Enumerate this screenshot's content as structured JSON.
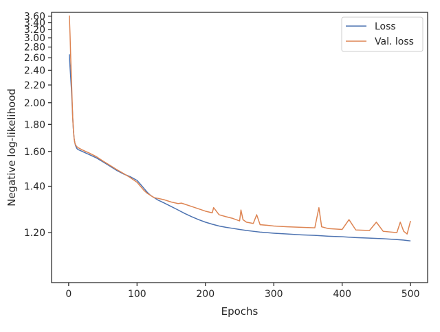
{
  "chart_data": {
    "type": "line",
    "title": "",
    "xlabel": "Epochs",
    "ylabel": "Negative log-likelihood",
    "xlim": [
      -25,
      525
    ],
    "ylim": [
      1.04,
      3.73
    ],
    "y_scale": "reciprocal",
    "x_ticks": [
      0,
      100,
      200,
      300,
      400,
      500
    ],
    "x_tick_labels": [
      "0",
      "100",
      "200",
      "300",
      "400",
      "500"
    ],
    "y_ticks": [
      1.2,
      1.4,
      1.6,
      1.8,
      2.0,
      2.2,
      2.4,
      2.6,
      2.8,
      3.0,
      3.2,
      3.4,
      3.6
    ],
    "y_tick_labels": [
      "1.20",
      "1.40",
      "1.60",
      "1.80",
      "2.00",
      "2.20",
      "2.40",
      "2.60",
      "2.80",
      "3.00",
      "3.20",
      "3.40",
      "3.60"
    ],
    "grid": false,
    "legend_position": "top-right",
    "series": [
      {
        "name": "Loss",
        "color": "#4c72b0",
        "x": [
          1,
          2,
          3,
          4,
          5,
          6,
          7,
          8,
          9,
          10,
          11,
          12,
          13,
          14,
          15,
          20,
          30,
          40,
          50,
          60,
          70,
          80,
          90,
          100,
          105,
          110,
          115,
          120,
          130,
          140,
          150,
          160,
          170,
          180,
          190,
          200,
          210,
          220,
          230,
          240,
          250,
          260,
          270,
          280,
          290,
          300,
          320,
          340,
          360,
          380,
          400,
          420,
          440,
          460,
          480,
          490,
          500
        ],
        "y": [
          2.66,
          2.45,
          2.3,
          2.15,
          2.0,
          1.85,
          1.75,
          1.69,
          1.66,
          1.64,
          1.63,
          1.62,
          1.615,
          1.612,
          1.61,
          1.6,
          1.58,
          1.56,
          1.535,
          1.51,
          1.485,
          1.465,
          1.45,
          1.43,
          1.41,
          1.39,
          1.37,
          1.355,
          1.335,
          1.32,
          1.305,
          1.29,
          1.275,
          1.262,
          1.25,
          1.24,
          1.232,
          1.225,
          1.22,
          1.216,
          1.212,
          1.208,
          1.205,
          1.202,
          1.2,
          1.198,
          1.195,
          1.192,
          1.19,
          1.187,
          1.185,
          1.182,
          1.18,
          1.178,
          1.175,
          1.173,
          1.17
        ]
      },
      {
        "name": "Val. loss",
        "color": "#dd8452",
        "x": [
          1,
          2,
          3,
          4,
          5,
          6,
          7,
          8,
          9,
          10,
          11,
          12,
          13,
          14,
          15,
          20,
          30,
          40,
          50,
          60,
          70,
          80,
          90,
          100,
          105,
          110,
          115,
          120,
          125,
          130,
          140,
          150,
          160,
          165,
          170,
          180,
          190,
          200,
          210,
          212,
          220,
          230,
          240,
          250,
          252,
          255,
          260,
          270,
          275,
          280,
          290,
          300,
          320,
          340,
          360,
          366,
          370,
          380,
          400,
          410,
          420,
          440,
          450,
          460,
          480,
          485,
          490,
          495,
          500
        ],
        "y": [
          3.62,
          3.1,
          2.6,
          2.3,
          2.05,
          1.85,
          1.75,
          1.69,
          1.66,
          1.645,
          1.638,
          1.632,
          1.628,
          1.625,
          1.622,
          1.61,
          1.59,
          1.568,
          1.54,
          1.515,
          1.49,
          1.468,
          1.445,
          1.42,
          1.4,
          1.38,
          1.365,
          1.355,
          1.345,
          1.342,
          1.335,
          1.325,
          1.318,
          1.32,
          1.315,
          1.305,
          1.295,
          1.285,
          1.278,
          1.3,
          1.27,
          1.262,
          1.255,
          1.245,
          1.29,
          1.25,
          1.24,
          1.235,
          1.27,
          1.23,
          1.228,
          1.225,
          1.222,
          1.22,
          1.218,
          1.3,
          1.222,
          1.215,
          1.212,
          1.25,
          1.21,
          1.208,
          1.24,
          1.205,
          1.2,
          1.24,
          1.205,
          1.195,
          1.245
        ]
      }
    ]
  }
}
